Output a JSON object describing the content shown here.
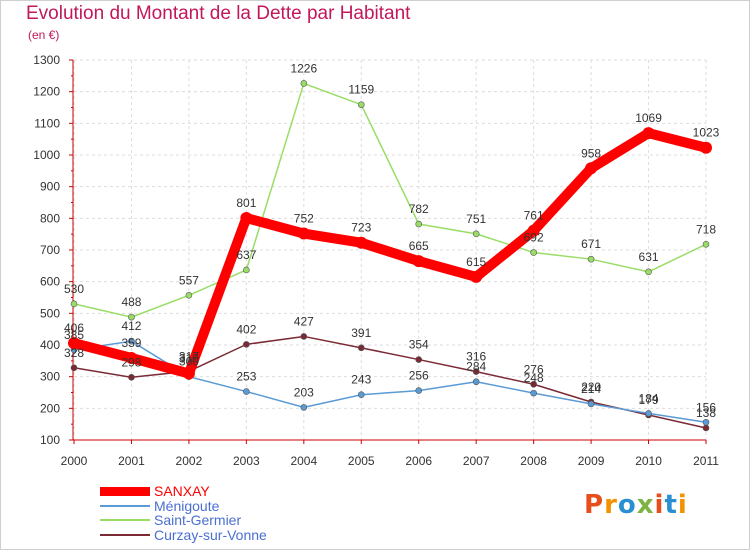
{
  "title": "Evolution du Montant de la Dette par Habitant",
  "subtitle": "(en €)",
  "logo": {
    "text": "Proxiti",
    "colors": [
      "#e84e1b",
      "#f39200",
      "#2a8fd1",
      "#7cb342",
      "#e84e1b",
      "#2a8fd1",
      "#f39200"
    ]
  },
  "chart_data": {
    "type": "line",
    "title": "Evolution du Montant de la Dette par Habitant",
    "ylabel": "(en €)",
    "xlabel": "",
    "categories": [
      "2000",
      "2001",
      "2002",
      "2003",
      "2004",
      "2005",
      "2006",
      "2007",
      "2008",
      "2009",
      "2010",
      "2011"
    ],
    "ylim": [
      100,
      1300
    ],
    "yticks": [
      "100",
      "200",
      "300",
      "400",
      "500",
      "600",
      "700",
      "800",
      "900",
      "1000",
      "1100",
      "1200",
      "1300"
    ],
    "grid": true,
    "legend": "bottom-left",
    "series": [
      {
        "name": "SANXAY",
        "color": "#ff0000",
        "values": [
          406,
          359,
          310,
          801,
          752,
          723,
          665,
          615,
          761,
          958,
          1069,
          1023
        ],
        "labels": [
          "406",
          "359",
          "310",
          "801",
          "752",
          "723",
          "665",
          "615",
          "761",
          "958",
          "1069",
          "1023"
        ]
      },
      {
        "name": "Ménigoute",
        "color": "#5b9bd5",
        "values": [
          385,
          412,
          300,
          253,
          203,
          243,
          256,
          284,
          248,
          214,
          184,
          156
        ],
        "labels": [
          "385",
          "412",
          "300",
          "253",
          "203",
          "243",
          "256",
          "284",
          "248",
          "214",
          "184",
          "156"
        ]
      },
      {
        "name": "Saint-Germier",
        "color": "#99dd66",
        "values": [
          530,
          488,
          557,
          637,
          1226,
          1159,
          782,
          751,
          692,
          671,
          631,
          718
        ],
        "labels": [
          "530",
          "488",
          "557",
          "637",
          "1226",
          "1159",
          "782",
          "751",
          "692",
          "671",
          "631",
          "718"
        ]
      },
      {
        "name": "Curzay-sur-Vonne",
        "color": "#7a2a35",
        "values": [
          328,
          298,
          317,
          402,
          427,
          391,
          354,
          316,
          276,
          220,
          179,
          138
        ],
        "labels": [
          "328",
          "298",
          "317",
          "402",
          "427",
          "391",
          "354",
          "316",
          "276",
          "220",
          "179",
          "138"
        ]
      }
    ]
  }
}
